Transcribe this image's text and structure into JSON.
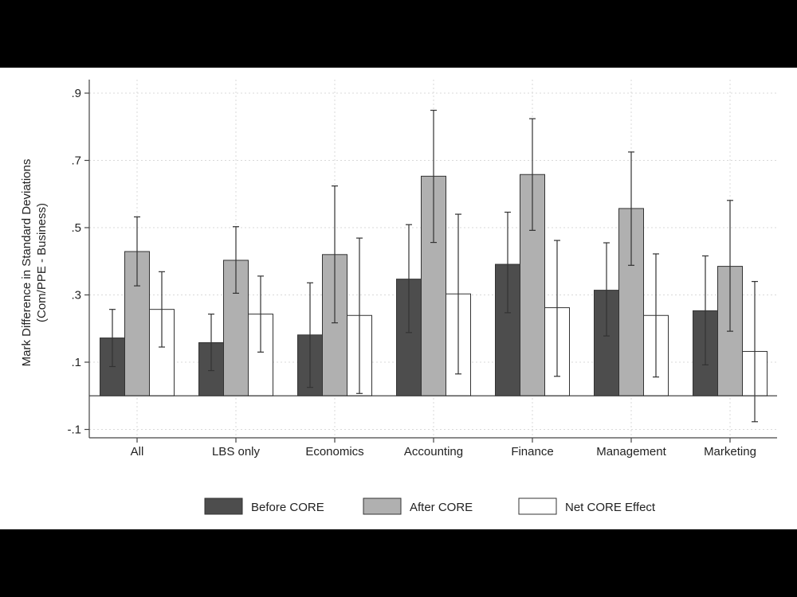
{
  "chart_data": {
    "type": "bar",
    "categories": [
      "All",
      "LBS only",
      "Economics",
      "Accounting",
      "Finance",
      "Management",
      "Marketing"
    ],
    "ylabel": [
      "Mark Difference in Standard Deviations",
      "(Com/PPE - Business)"
    ],
    "xlabel": "",
    "yticks": [
      ".9",
      ".7",
      ".5",
      ".3",
      ".1",
      "-.1"
    ],
    "ylim": [
      -0.12,
      0.95
    ],
    "grid": true,
    "legend_position": "bottom",
    "series": [
      {
        "name": "Before CORE",
        "color": "#4d4d4d",
        "values": [
          0.172,
          0.158,
          0.181,
          0.347,
          0.391,
          0.314,
          0.253
        ],
        "ci_low": [
          0.087,
          0.075,
          0.025,
          0.188,
          0.247,
          0.178,
          0.092
        ],
        "ci_high": [
          0.257,
          0.243,
          0.336,
          0.509,
          0.546,
          0.455,
          0.416
        ]
      },
      {
        "name": "After CORE",
        "color": "#b0b0b0",
        "values": [
          0.429,
          0.403,
          0.42,
          0.653,
          0.658,
          0.557,
          0.385
        ],
        "ci_low": [
          0.327,
          0.305,
          0.217,
          0.456,
          0.492,
          0.388,
          0.192
        ],
        "ci_high": [
          0.532,
          0.503,
          0.624,
          0.849,
          0.824,
          0.725,
          0.581
        ]
      },
      {
        "name": "Net CORE Effect",
        "color": "#ffffff",
        "values": [
          0.257,
          0.243,
          0.239,
          0.303,
          0.262,
          0.239,
          0.132
        ],
        "ci_low": [
          0.145,
          0.13,
          0.007,
          0.065,
          0.058,
          0.056,
          -0.077
        ],
        "ci_high": [
          0.369,
          0.356,
          0.469,
          0.54,
          0.462,
          0.422,
          0.34
        ]
      }
    ]
  }
}
